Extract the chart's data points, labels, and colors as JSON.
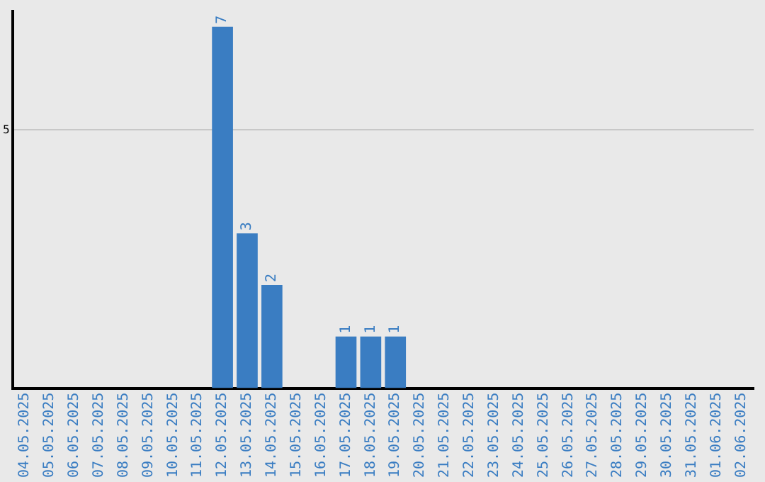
{
  "chart_data": {
    "type": "bar",
    "categories": [
      "04.05.2025",
      "05.05.2025",
      "06.05.2025",
      "07.05.2025",
      "08.05.2025",
      "09.05.2025",
      "10.05.2025",
      "11.05.2025",
      "12.05.2025",
      "13.05.2025",
      "14.05.2025",
      "15.05.2025",
      "16.05.2025",
      "17.05.2025",
      "18.05.2025",
      "19.05.2025",
      "20.05.2025",
      "21.05.2025",
      "22.05.2025",
      "23.05.2025",
      "24.05.2025",
      "25.05.2025",
      "26.05.2025",
      "27.05.2025",
      "28.05.2025",
      "29.05.2025",
      "30.05.2025",
      "31.05.2025",
      "01.06.2025",
      "02.06.2025"
    ],
    "values": [
      0,
      0,
      0,
      0,
      0,
      0,
      0,
      0,
      7,
      3,
      2,
      0,
      0,
      1,
      1,
      1,
      0,
      0,
      0,
      0,
      0,
      0,
      0,
      0,
      0,
      0,
      0,
      0,
      0,
      0
    ],
    "value_labels": [
      null,
      null,
      null,
      null,
      null,
      null,
      null,
      null,
      "7",
      "3",
      "2",
      null,
      null,
      "1",
      "1",
      "1",
      null,
      null,
      null,
      null,
      null,
      null,
      null,
      null,
      null,
      null,
      null,
      null,
      null,
      null
    ],
    "color": "#3a7dc2",
    "ylim": [
      0,
      7.3
    ],
    "yticks": [
      5
    ],
    "grid": "y",
    "legend": false
  }
}
